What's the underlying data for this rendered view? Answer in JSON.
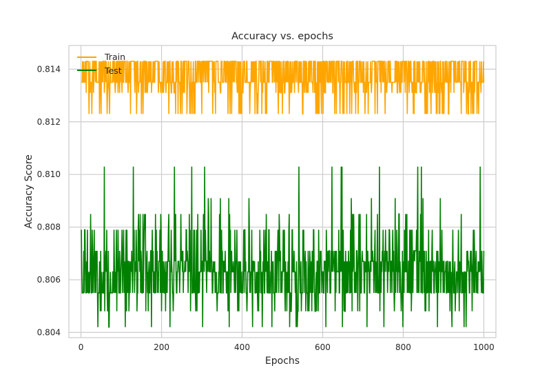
{
  "chart_data": {
    "type": "line",
    "title": "Accuracy vs. epochs",
    "xlabel": "Epochs",
    "ylabel": "Accuracy Score",
    "xlim": [
      -30,
      1030
    ],
    "ylim": [
      0.8038,
      0.8149
    ],
    "xticks": [
      0,
      200,
      400,
      600,
      800,
      1000
    ],
    "yticks": [
      0.804,
      0.806,
      0.808,
      0.81,
      0.812,
      0.814
    ],
    "xtick_labels": [
      "0",
      "200",
      "400",
      "600",
      "800",
      "1000"
    ],
    "ytick_labels": [
      "0.804",
      "0.806",
      "0.808",
      "0.810",
      "0.812",
      "0.814"
    ],
    "grid": true,
    "legend": "top-left",
    "x": {
      "start": 1,
      "end": 1000,
      "step": 1
    },
    "series": [
      {
        "name": "Train",
        "color": "#FFA500",
        "levels": [
          0.8143,
          0.8135,
          0.8131,
          0.8123
        ],
        "level_weights": [
          0.45,
          0.35,
          0.12,
          0.08
        ],
        "min": 0.8122,
        "max": 0.8143
      },
      {
        "name": "Test",
        "color": "#008000",
        "levels": [
          0.8055,
          0.8063,
          0.8067,
          0.8071,
          0.8079,
          0.8048,
          0.8085,
          0.8042,
          0.8091,
          0.8103
        ],
        "level_weights": [
          0.26,
          0.22,
          0.18,
          0.12,
          0.08,
          0.06,
          0.04,
          0.02,
          0.01,
          0.01
        ],
        "min": 0.8042,
        "max": 0.8103,
        "first_value": 0.8079,
        "peak": {
          "x": 58,
          "value": 0.8103
        }
      }
    ]
  }
}
